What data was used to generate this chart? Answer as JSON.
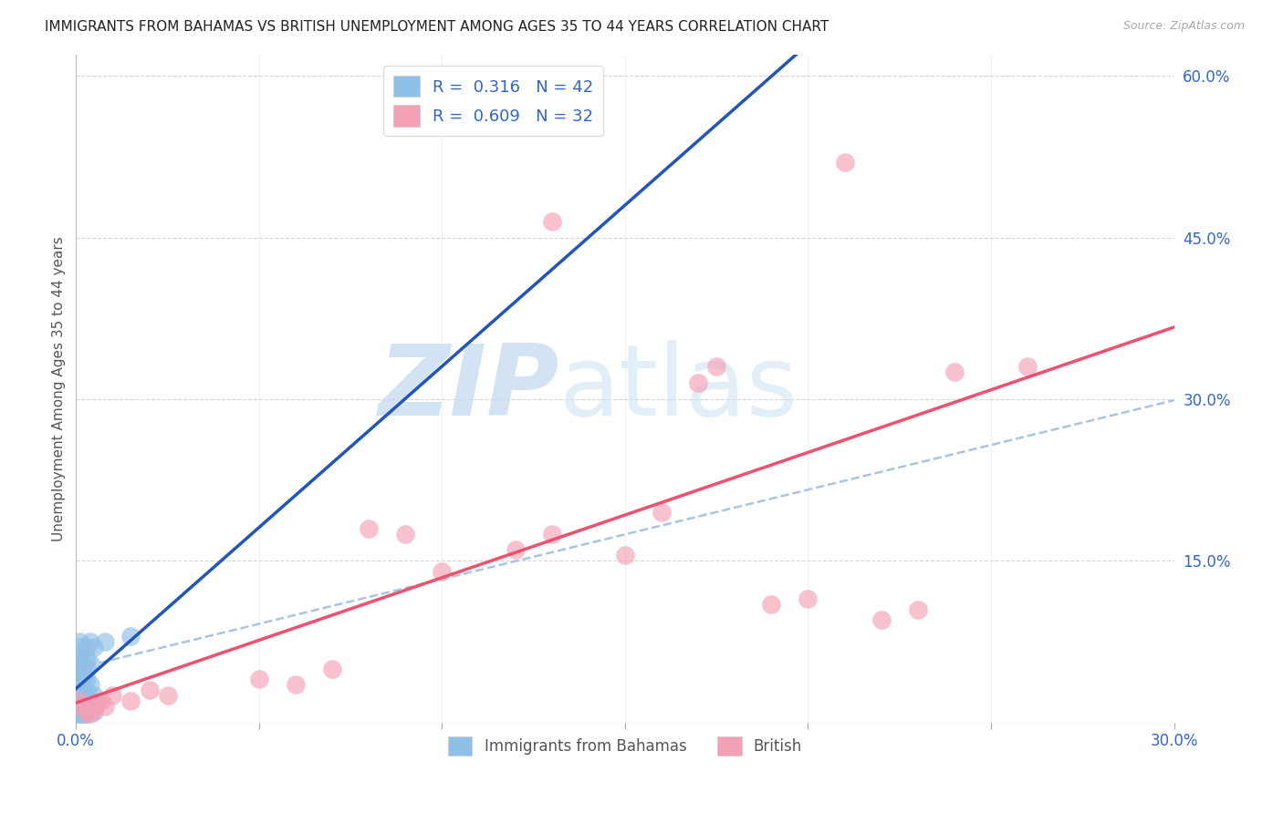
{
  "title": "IMMIGRANTS FROM BAHAMAS VS BRITISH UNEMPLOYMENT AMONG AGES 35 TO 44 YEARS CORRELATION CHART",
  "source": "Source: ZipAtlas.com",
  "xlabel": "",
  "ylabel": "Unemployment Among Ages 35 to 44 years",
  "bottom_legend_labels": [
    "Immigrants from Bahamas",
    "British"
  ],
  "xlim": [
    0.0,
    0.3
  ],
  "ylim": [
    0.0,
    0.62
  ],
  "xticks": [
    0.0,
    0.05,
    0.1,
    0.15,
    0.2,
    0.25,
    0.3
  ],
  "yticks_right": [
    0.0,
    0.15,
    0.3,
    0.45,
    0.6
  ],
  "ytick_right_labels": [
    "",
    "15.0%",
    "30.0%",
    "45.0%",
    "60.0%"
  ],
  "xtick_labels": [
    "0.0%",
    "",
    "",
    "",
    "",
    "",
    "30.0%"
  ],
  "r_blue": 0.316,
  "n_blue": 42,
  "r_pink": 0.609,
  "n_pink": 32,
  "blue_color": "#90C0E8",
  "pink_color": "#F4A0B5",
  "blue_line_color": "#2255BB",
  "pink_line_color": "#EE5070",
  "blue_scatter": [
    [
      0.001,
      0.005
    ],
    [
      0.001,
      0.01
    ],
    [
      0.001,
      0.015
    ],
    [
      0.001,
      0.02
    ],
    [
      0.001,
      0.025
    ],
    [
      0.001,
      0.03
    ],
    [
      0.001,
      0.035
    ],
    [
      0.001,
      0.04
    ],
    [
      0.001,
      0.045
    ],
    [
      0.001,
      0.05
    ],
    [
      0.001,
      0.055
    ],
    [
      0.001,
      0.06
    ],
    [
      0.001,
      0.065
    ],
    [
      0.001,
      0.07
    ],
    [
      0.001,
      0.075
    ],
    [
      0.002,
      0.005
    ],
    [
      0.002,
      0.01
    ],
    [
      0.002,
      0.015
    ],
    [
      0.002,
      0.02
    ],
    [
      0.002,
      0.025
    ],
    [
      0.002,
      0.03
    ],
    [
      0.002,
      0.035
    ],
    [
      0.002,
      0.04
    ],
    [
      0.002,
      0.045
    ],
    [
      0.002,
      0.05
    ],
    [
      0.002,
      0.055
    ],
    [
      0.003,
      0.01
    ],
    [
      0.003,
      0.02
    ],
    [
      0.003,
      0.03
    ],
    [
      0.003,
      0.04
    ],
    [
      0.003,
      0.05
    ],
    [
      0.003,
      0.06
    ],
    [
      0.003,
      0.07
    ],
    [
      0.004,
      0.02
    ],
    [
      0.004,
      0.035
    ],
    [
      0.004,
      0.055
    ],
    [
      0.004,
      0.075
    ],
    [
      0.005,
      0.01
    ],
    [
      0.005,
      0.025
    ],
    [
      0.005,
      0.07
    ],
    [
      0.008,
      0.075
    ],
    [
      0.015,
      0.08
    ]
  ],
  "pink_scatter": [
    [
      0.001,
      0.02
    ],
    [
      0.002,
      0.015
    ],
    [
      0.003,
      0.01
    ],
    [
      0.004,
      0.008
    ],
    [
      0.005,
      0.012
    ],
    [
      0.006,
      0.018
    ],
    [
      0.007,
      0.02
    ],
    [
      0.008,
      0.015
    ],
    [
      0.01,
      0.025
    ],
    [
      0.015,
      0.02
    ],
    [
      0.02,
      0.03
    ],
    [
      0.025,
      0.025
    ],
    [
      0.05,
      0.04
    ],
    [
      0.06,
      0.035
    ],
    [
      0.07,
      0.05
    ],
    [
      0.08,
      0.18
    ],
    [
      0.09,
      0.175
    ],
    [
      0.1,
      0.14
    ],
    [
      0.12,
      0.16
    ],
    [
      0.13,
      0.175
    ],
    [
      0.15,
      0.155
    ],
    [
      0.16,
      0.195
    ],
    [
      0.17,
      0.315
    ],
    [
      0.175,
      0.33
    ],
    [
      0.19,
      0.11
    ],
    [
      0.2,
      0.115
    ],
    [
      0.22,
      0.095
    ],
    [
      0.23,
      0.105
    ],
    [
      0.24,
      0.325
    ],
    [
      0.26,
      0.33
    ],
    [
      0.13,
      0.465
    ],
    [
      0.21,
      0.52
    ]
  ],
  "watermark_zip": "ZIP",
  "watermark_atlas": "atlas",
  "background_color": "#ffffff",
  "grid_color": "#cccccc"
}
